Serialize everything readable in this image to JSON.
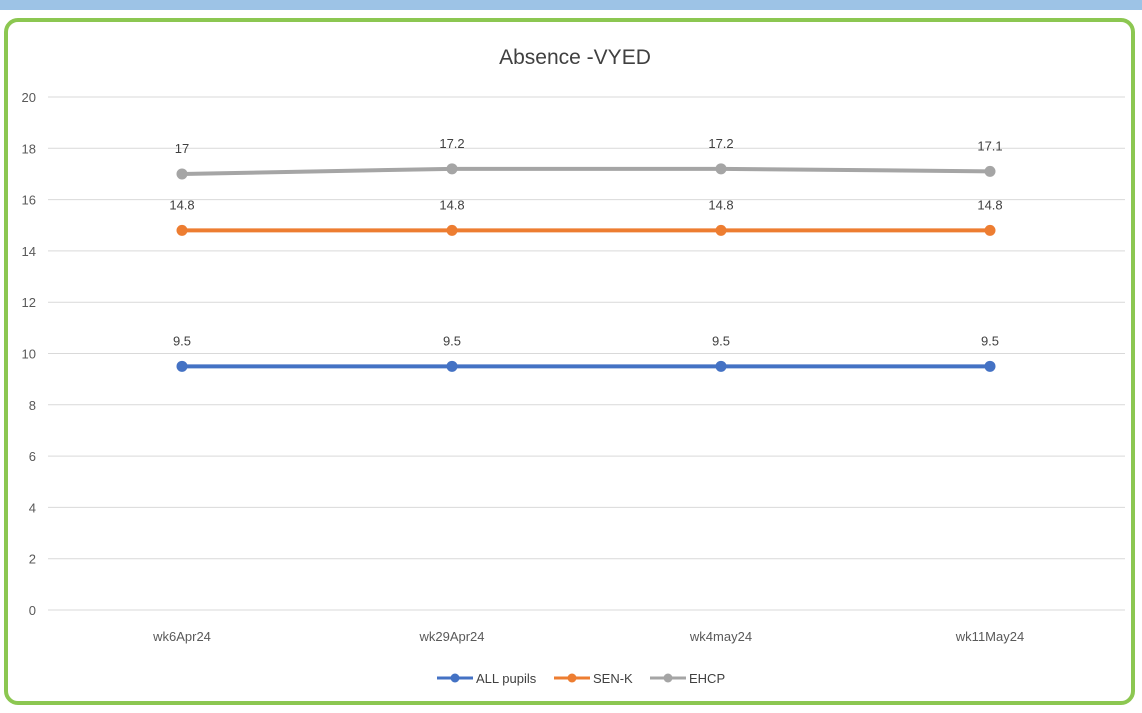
{
  "chart_data": {
    "type": "line",
    "title": "Absence -VYED",
    "xlabel": "",
    "ylabel": "",
    "categories": [
      "wk6Apr24",
      "wk29Apr24",
      "wk4may24",
      "wk11May24"
    ],
    "ylim": [
      0,
      20
    ],
    "yticks": [
      0,
      2,
      4,
      6,
      8,
      10,
      12,
      14,
      16,
      18,
      20
    ],
    "grid": true,
    "legend_position": "bottom",
    "series": [
      {
        "name": "ALL pupils",
        "values": [
          9.5,
          9.5,
          9.5,
          9.5
        ],
        "labels": [
          "9.5",
          "9.5",
          "9.5",
          "9.5"
        ],
        "color": "#4472c4"
      },
      {
        "name": "SEN-K",
        "values": [
          14.8,
          14.8,
          14.8,
          14.8
        ],
        "labels": [
          "14.8",
          "14.8",
          "14.8",
          "14.8"
        ],
        "color": "#ed7d31"
      },
      {
        "name": "EHCP",
        "values": [
          17,
          17.2,
          17.2,
          17.1
        ],
        "labels": [
          "17",
          "17.2",
          "17.2",
          "17.1"
        ],
        "color": "#a5a5a5"
      }
    ]
  },
  "colors": {
    "frame_border": "#8cc751",
    "top_strip": "#9dc3e6",
    "gridline": "#d9d9d9"
  }
}
